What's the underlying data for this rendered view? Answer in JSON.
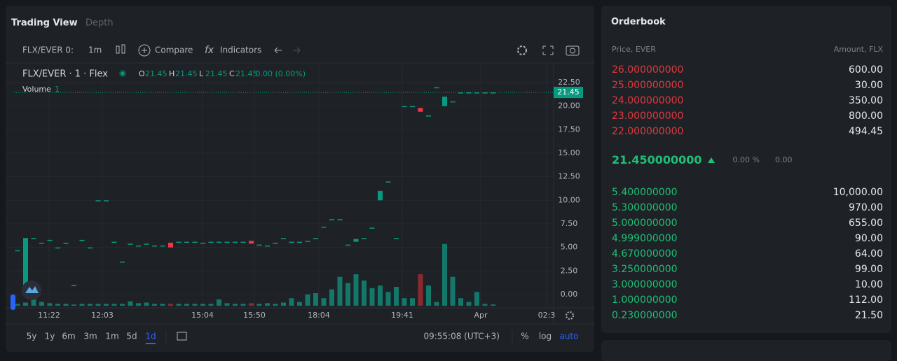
{
  "tabs": [
    "Trading View",
    "Depth"
  ],
  "toolbar": {
    "symbol": "FLX/EVER 0:",
    "interval": "1m",
    "compare": "Compare",
    "indicators": "Indicators"
  },
  "legend": {
    "title": "FLX/EVER · 1 · Flex",
    "ohlc": [
      {
        "key": "O",
        "value": "21.45"
      },
      {
        "key": "H",
        "value": "21.45"
      },
      {
        "key": "L",
        "value": "21.45"
      },
      {
        "key": "C",
        "value": "21.45"
      }
    ],
    "change": "0.00 (0.00%)",
    "volume_label": "Volume",
    "volume_value": "1"
  },
  "chart_data": {
    "type": "candlestick",
    "open": [
      4.7,
      0.5,
      6.0,
      5.5,
      5.8,
      5.0,
      5.5,
      1.0,
      5.8,
      5.0,
      10.0,
      10.0,
      5.6,
      3.5,
      5.4,
      5.2,
      5.4,
      5.2,
      5.2,
      5.5,
      5.6,
      5.6,
      5.6,
      5.5,
      5.6,
      5.6,
      5.6,
      5.6,
      5.6,
      5.7,
      5.3,
      5.2,
      5.5,
      6.0,
      5.6,
      5.6,
      5.7,
      6.0,
      7.2,
      8.0,
      8.0,
      5.3,
      5.6,
      6.0,
      7.1,
      10.0,
      12.0,
      6.0,
      20.0,
      20.0,
      19.8,
      19.0,
      22.0,
      20.0,
      20.5,
      21.45,
      21.45,
      21.45,
      21.45,
      21.45
    ],
    "close": [
      4.7,
      6.0,
      6.0,
      5.5,
      5.8,
      5.0,
      5.5,
      1.0,
      5.8,
      5.0,
      10.0,
      10.0,
      5.6,
      3.5,
      5.4,
      5.2,
      5.4,
      5.2,
      5.2,
      5.0,
      5.6,
      5.6,
      5.6,
      5.5,
      5.6,
      5.6,
      5.6,
      5.6,
      5.6,
      5.4,
      5.3,
      5.2,
      5.5,
      6.0,
      5.6,
      5.6,
      5.7,
      6.0,
      7.2,
      8.0,
      8.0,
      5.3,
      5.9,
      6.0,
      7.1,
      11.0,
      12.0,
      6.0,
      20.0,
      20.0,
      19.4,
      19.0,
      22.0,
      21.0,
      20.5,
      21.45,
      21.45,
      21.45,
      21.45,
      21.45
    ],
    "volume": [
      0.3,
      0.5,
      1.2,
      0.6,
      0.4,
      0.3,
      0.3,
      0.2,
      0.3,
      0.3,
      0.3,
      0.3,
      0.3,
      0.3,
      0.7,
      0.4,
      0.5,
      0.3,
      0.3,
      0.3,
      0.3,
      0.3,
      0.3,
      0.3,
      0.3,
      1.0,
      0.4,
      0.3,
      0.3,
      0.4,
      0.3,
      0.4,
      0.3,
      0.5,
      1.2,
      0.6,
      1.8,
      2.0,
      1.2,
      2.6,
      4.6,
      3.6,
      5.0,
      4.0,
      2.8,
      3.2,
      2.2,
      3.0,
      1.2,
      1.2,
      5.0,
      3.2,
      0.6,
      9.8,
      4.6,
      1.2,
      0.6,
      2.2,
      0.3,
      0.2
    ],
    "up_color": "#089981",
    "down_color": "#f23645",
    "ylim": [
      -1.41,
      24.43
    ],
    "yticks": [
      {
        "value": 0,
        "label": "0.00"
      },
      {
        "value": 2.5,
        "label": "2.50"
      },
      {
        "value": 5,
        "label": "5.00"
      },
      {
        "value": 7.5,
        "label": "7.50"
      },
      {
        "value": 10,
        "label": "10.00"
      },
      {
        "value": 12.5,
        "label": "12.50"
      },
      {
        "value": 15,
        "label": "15.00"
      },
      {
        "value": 17.5,
        "label": "17.50"
      },
      {
        "value": 20,
        "label": "20.00"
      },
      {
        "value": 22.5,
        "label": "22.50"
      }
    ],
    "x_labels": [
      "11:22",
      "12:03",
      "15:04",
      "15:50",
      "18:04",
      "19:41",
      "Apr",
      "02:3"
    ],
    "last_price": 21.45,
    "grid": true
  },
  "timeframes": [
    "5y",
    "1y",
    "6m",
    "3m",
    "1m",
    "5d",
    "1d"
  ],
  "active_timeframe": 6,
  "clock": "09:55:08 (UTC+3)",
  "scale_options": [
    "%",
    "log",
    "auto"
  ],
  "orderbook": {
    "title": "Orderbook",
    "headers": [
      "Price, EVER",
      "Amount, FLX"
    ],
    "asks": [
      [
        "26.000000000",
        "600.00"
      ],
      [
        "25.000000000",
        "30.00"
      ],
      [
        "24.000000000",
        "350.00"
      ],
      [
        "23.000000000",
        "800.00"
      ],
      [
        "22.000000000",
        "494.45"
      ]
    ],
    "last_price": "21.450000000",
    "change_pct": "0.00 %",
    "change": "0.00",
    "bids": [
      [
        "5.400000000",
        "10,000.00"
      ],
      [
        "5.300000000",
        "970.00"
      ],
      [
        "5.000000000",
        "655.00"
      ],
      [
        "4.999000000",
        "90.00"
      ],
      [
        "4.670000000",
        "64.00"
      ],
      [
        "3.250000000",
        "99.00"
      ],
      [
        "3.000000000",
        "10.00"
      ],
      [
        "1.000000000",
        "112.00"
      ],
      [
        "0.230000000",
        "21.50"
      ]
    ]
  }
}
